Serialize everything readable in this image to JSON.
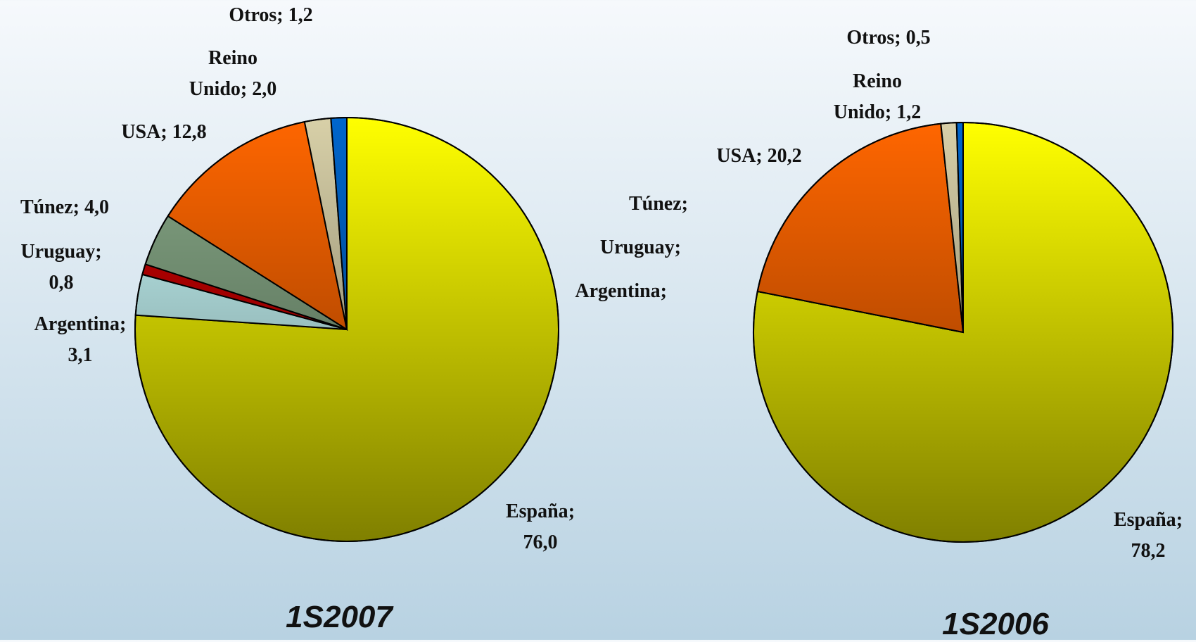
{
  "chart_data": [
    {
      "type": "pie",
      "title": "1S2007",
      "categories": [
        "España",
        "Argentina",
        "Uruguay",
        "Túnez",
        "USA",
        "Reino Unido",
        "Otros"
      ],
      "values": [
        76.0,
        3.1,
        0.8,
        4.0,
        12.8,
        2.0,
        1.2
      ],
      "value_labels": [
        "76,0",
        "3,1",
        "0,8",
        "4,0",
        "12,8",
        "2,0",
        "1,2"
      ],
      "label_separator": "; ",
      "colors": [
        "#ffff00",
        "#ccffff",
        "#cc0000",
        "#88aa88",
        "#ff6600",
        "#d8d0a8",
        "#0066cc"
      ]
    },
    {
      "type": "pie",
      "title": "1S2006",
      "categories": [
        "España",
        "Argentina",
        "Uruguay",
        "Túnez",
        "USA",
        "Reino Unido",
        "Otros"
      ],
      "values": [
        78.2,
        0,
        0,
        0,
        20.2,
        1.2,
        0.5
      ],
      "value_labels": [
        "78,2",
        null,
        null,
        null,
        "20,2",
        "1,2",
        "0,5"
      ],
      "label_separator": "; ",
      "colors": [
        "#ffff00",
        "#ccffff",
        "#cc0000",
        "#88aa88",
        "#ff6600",
        "#d8d0a8",
        "#0066cc"
      ]
    }
  ]
}
